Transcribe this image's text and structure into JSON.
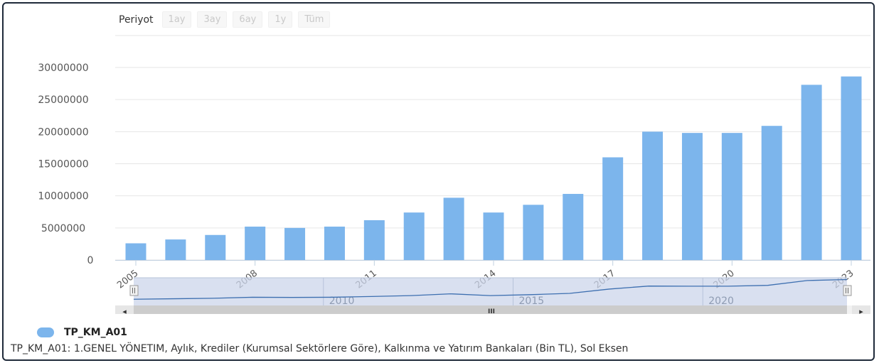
{
  "period": {
    "label": "Periyot",
    "buttons": [
      "1ay",
      "3ay",
      "6ay",
      "1y",
      "Tüm"
    ]
  },
  "colors": {
    "bar": "#7cb5ec",
    "grid": "#e6e6e6",
    "navigator_fill": "#ccd6eb"
  },
  "chart_data": {
    "type": "bar",
    "categories": [
      "2005",
      "2006",
      "2007",
      "2008",
      "2009",
      "2010",
      "2011",
      "2012",
      "2013",
      "2014",
      "2015",
      "2016",
      "2017",
      "2018",
      "2019",
      "2020",
      "2021",
      "2022",
      "2023"
    ],
    "series": [
      {
        "name": "TP_KM_A01",
        "values": [
          2600000,
          3200000,
          3900000,
          5200000,
          5000000,
          5200000,
          6200000,
          7400000,
          9700000,
          7400000,
          8600000,
          10300000,
          16000000,
          20000000,
          19800000,
          19800000,
          20900000,
          27300000,
          28600000
        ]
      }
    ],
    "yticks": [
      "0",
      "5000000",
      "10000000",
      "15000000",
      "20000000",
      "25000000",
      "30000000"
    ],
    "ylim": [
      0,
      30000000
    ],
    "xticks": [
      "2005",
      "2008",
      "2011",
      "2014",
      "2017",
      "2020",
      "2023"
    ],
    "navigator_ticks": [
      "2010",
      "2015",
      "2020"
    ],
    "grid": true
  },
  "scrollbar": {
    "left_arrow": "◂",
    "right_arrow": "▸",
    "grip": "III"
  },
  "legend": {
    "label": "TP_KM_A01"
  },
  "description": "TP_KM_A01: 1.GENEL YÖNETIM, Aylık, Krediler (Kurumsal Sektörlere Göre), Kalkınma ve Yatırım Bankaları (Bin TL), Sol Eksen"
}
